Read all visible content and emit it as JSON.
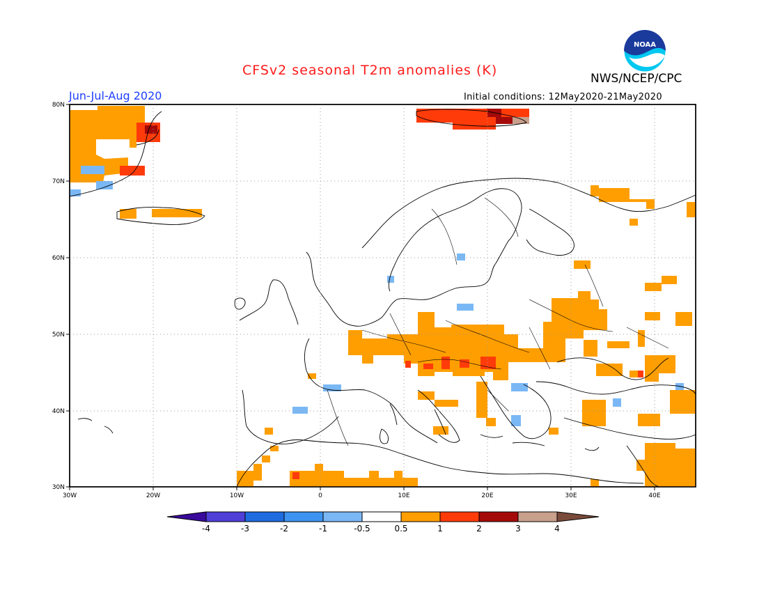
{
  "header": {
    "title": "CFSv2 seasonal T2m anomalies (K)",
    "agency": "NWS/NCEP/CPC",
    "period": "Jun-Jul-Aug 2020",
    "initial_conditions": "Initial conditions: 12May2020-21May2020",
    "logo_text": "NOAA"
  },
  "colors": {
    "title": "#ff1a1a",
    "period": "#1f3fff",
    "land_fill": "#ffffff",
    "coast": "#000000",
    "grid": "#999999"
  },
  "axes": {
    "lat_labels": [
      "80N",
      "70N",
      "60N",
      "50N",
      "40N",
      "30N"
    ],
    "lon_labels": [
      "30W",
      "20W",
      "10W",
      "0",
      "10E",
      "20E",
      "30E",
      "40E"
    ]
  },
  "colorbar": {
    "tick_labels": [
      "-4",
      "-3",
      "-2",
      "-1",
      "-0.5",
      "0.5",
      "1",
      "2",
      "3",
      "4"
    ],
    "bins": [
      {
        "color": "#3a0a9c"
      },
      {
        "color": "#4f3fd6"
      },
      {
        "color": "#1f6ce0"
      },
      {
        "color": "#3d93f0"
      },
      {
        "color": "#7ab8f5"
      },
      {
        "color": "#ffffff"
      },
      {
        "color": "#ff9e00"
      },
      {
        "color": "#ff3b0a"
      },
      {
        "color": "#a50a0a"
      },
      {
        "color": "#c9a08c"
      },
      {
        "color": "#7a4a3a"
      }
    ]
  },
  "map_data": {
    "projection": "lat-lon",
    "lon_range": [
      -30,
      45
    ],
    "lat_range": [
      30,
      80
    ],
    "anomaly_regions": [
      {
        "name": "Greenland east coast",
        "level": "0.5-1",
        "lon": [
          -30,
          -21
        ],
        "lat": [
          70,
          79
        ]
      },
      {
        "name": "Svalbard",
        "level": "1-2",
        "lon": [
          11,
          25
        ],
        "lat": [
          77,
          79
        ]
      },
      {
        "name": "Iceland",
        "level": "0.5-1",
        "lon": [
          -20,
          -14
        ],
        "lat": [
          64,
          66
        ]
      },
      {
        "name": "Kola peninsula",
        "level": "0.5-1",
        "lon": [
          32,
          45
        ],
        "lat": [
          65,
          70
        ]
      },
      {
        "name": "Central Europe",
        "level": "0.5-1",
        "lon": [
          3,
          26
        ],
        "lat": [
          43,
          50
        ]
      },
      {
        "name": "Adriatic / Balkans",
        "level": "1-2",
        "lon": [
          11,
          21
        ],
        "lat": [
          45,
          46
        ]
      },
      {
        "name": "Ukraine / Russia",
        "level": "0.5-1",
        "lon": [
          28,
          44
        ],
        "lat": [
          45,
          53
        ]
      },
      {
        "name": "Turkey east / Middle East",
        "level": "0.5-1",
        "lon": [
          38,
          45
        ],
        "lat": [
          30,
          36
        ]
      },
      {
        "name": "Morocco / Algeria",
        "level": "0.5-1",
        "lon": [
          -10,
          10
        ],
        "lat": [
          30,
          33
        ]
      },
      {
        "name": "Northern Spain",
        "level": "-1--0.5",
        "lon": [
          -3,
          -1
        ],
        "lat": [
          42,
          43
        ]
      },
      {
        "name": "Central Spain",
        "level": "-1--0.5",
        "lon": [
          -3,
          -1
        ],
        "lat": [
          40,
          41
        ]
      },
      {
        "name": "Bulgaria",
        "level": "-1--0.5",
        "lon": [
          23,
          26
        ],
        "lat": [
          42,
          43
        ]
      }
    ]
  }
}
